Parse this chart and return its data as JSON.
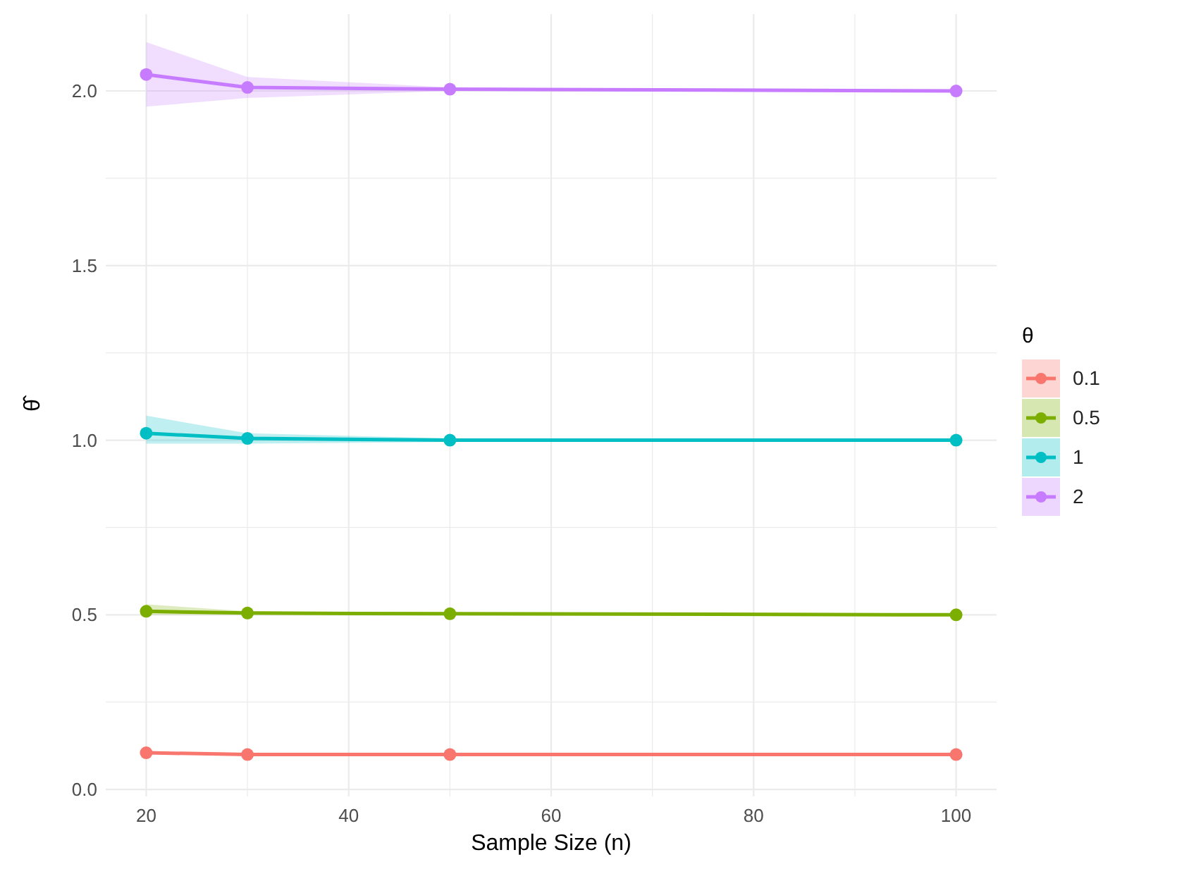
{
  "chart_data": {
    "type": "line",
    "xlabel": "Sample Size (n)",
    "ylabel": "θ̂",
    "legend_title": "θ",
    "x": [
      20,
      30,
      50,
      100
    ],
    "xlim": [
      16,
      104
    ],
    "xticks": [
      20,
      {
        "value": 30,
        "label": null
      },
      40,
      {
        "value": 50,
        "label": null
      },
      60,
      {
        "value": 70,
        "label": null
      },
      80,
      {
        "value": 90,
        "label": null
      },
      100
    ],
    "ylim": [
      -0.02,
      2.22
    ],
    "yticks": [
      {
        "value": 0,
        "label": "0.0"
      },
      {
        "value": 0.25,
        "label": null
      },
      0.5,
      {
        "value": 0.75,
        "label": null
      },
      {
        "value": 1,
        "label": "1.0"
      },
      {
        "value": 1.25,
        "label": null
      },
      1.5,
      {
        "value": 1.75,
        "label": null
      },
      {
        "value": 2,
        "label": "2.0"
      }
    ],
    "grid": true,
    "legend": "right",
    "marker": "circle",
    "line_style": "solid",
    "series": [
      {
        "name": "0.1",
        "color": "#f8766d",
        "values": [
          0.105,
          0.1,
          0.1,
          0.1
        ],
        "lower": [
          0.1,
          0.1,
          0.1,
          0.1
        ],
        "upper": [
          0.11,
          0.1,
          0.1,
          0.1
        ]
      },
      {
        "name": "0.5",
        "color": "#7cae00",
        "values": [
          0.51,
          0.505,
          0.503,
          0.5
        ],
        "lower": [
          0.5,
          0.5,
          0.5,
          0.5
        ],
        "upper": [
          0.53,
          0.51,
          0.505,
          0.5
        ]
      },
      {
        "name": "1",
        "color": "#00bfc4",
        "values": [
          1.02,
          1.005,
          1.0,
          1.0
        ],
        "lower": [
          0.99,
          0.99,
          0.995,
          1.0
        ],
        "upper": [
          1.07,
          1.02,
          1.005,
          1.0
        ]
      },
      {
        "name": "2",
        "color": "#c77cff",
        "values": [
          2.047,
          2.01,
          2.005,
          2.0
        ],
        "lower": [
          1.955,
          1.98,
          2.0,
          2.0
        ],
        "upper": [
          2.14,
          2.04,
          2.01,
          2.0
        ]
      }
    ]
  }
}
